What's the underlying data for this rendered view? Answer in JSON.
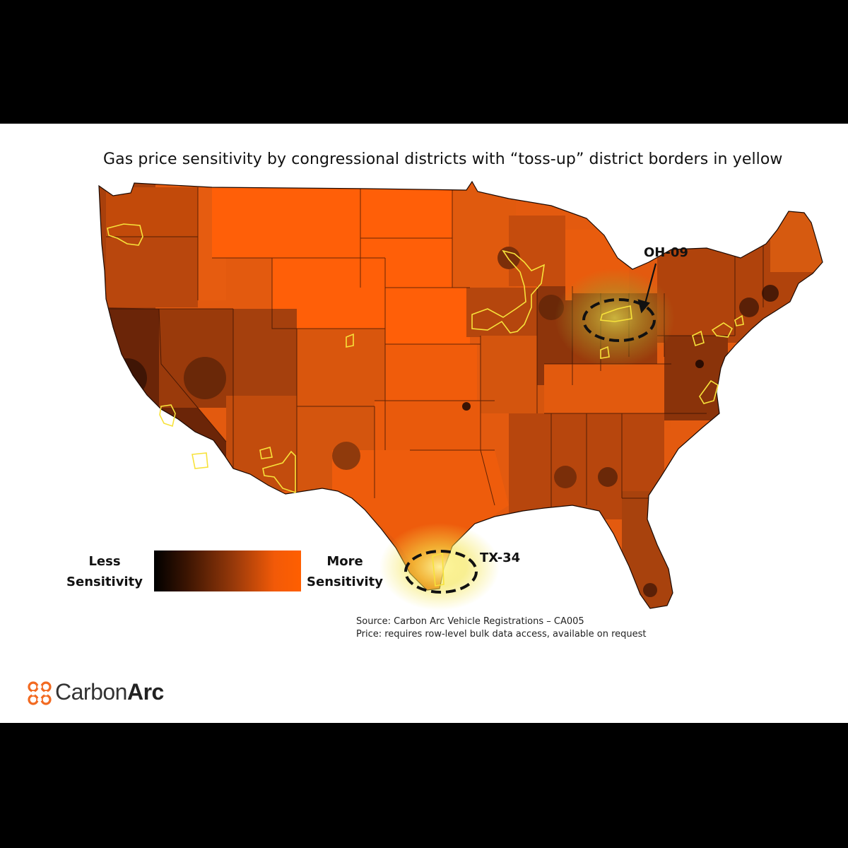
{
  "title": "Gas price sensitivity by congressional districts with “toss-up” district borders in yellow",
  "legend": {
    "low_line1": "Less",
    "low_line2": "Sensitivity",
    "high_line1": "More",
    "high_line2": "Sensitivity",
    "gradient_colors": [
      "#000000",
      "#ff5f00"
    ]
  },
  "colors": {
    "base_orange": "#e85a0c",
    "bright_orange": "#ff5f00",
    "toss_up_border": "#f7e23a",
    "highlight_glow": "#f4e44a",
    "brand_orange": "#f26a21"
  },
  "callouts": [
    {
      "label": "OH-09"
    },
    {
      "label": "TX-34"
    }
  ],
  "source": {
    "line1": "Source: Carbon Arc Vehicle Registrations – CA005",
    "line2": "Price: requires row-level bulk data access, available on request"
  },
  "brand": {
    "name_light": "Carbon",
    "name_bold": "Arc",
    "icon": "carbon-arc-logo-icon"
  }
}
